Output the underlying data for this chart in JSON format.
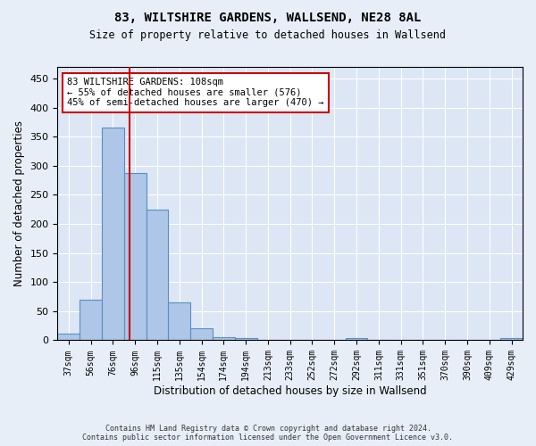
{
  "title": "83, WILTSHIRE GARDENS, WALLSEND, NE28 8AL",
  "subtitle": "Size of property relative to detached houses in Wallsend",
  "xlabel": "Distribution of detached houses by size in Wallsend",
  "ylabel": "Number of detached properties",
  "bar_labels": [
    "37sqm",
    "56sqm",
    "76sqm",
    "96sqm",
    "115sqm",
    "135sqm",
    "154sqm",
    "174sqm",
    "194sqm",
    "213sqm",
    "233sqm",
    "252sqm",
    "272sqm",
    "292sqm",
    "311sqm",
    "331sqm",
    "351sqm",
    "370sqm",
    "390sqm",
    "409sqm",
    "429sqm"
  ],
  "bar_values": [
    11,
    70,
    365,
    288,
    224,
    65,
    20,
    6,
    4,
    0,
    0,
    0,
    0,
    4,
    0,
    0,
    0,
    0,
    0,
    0,
    4
  ],
  "bar_color": "#aec6e8",
  "bar_edgecolor": "#5a8fc0",
  "bar_width": 1.0,
  "vline_x": 2.75,
  "vline_color": "#cc0000",
  "ylim": [
    0,
    470
  ],
  "yticks": [
    0,
    50,
    100,
    150,
    200,
    250,
    300,
    350,
    400,
    450
  ],
  "annotation_text": "83 WILTSHIRE GARDENS: 108sqm\n← 55% of detached houses are smaller (576)\n45% of semi-detached houses are larger (470) →",
  "annotation_box_color": "#ffffff",
  "annotation_box_edgecolor": "#cc0000",
  "footer_line1": "Contains HM Land Registry data © Crown copyright and database right 2024.",
  "footer_line2": "Contains public sector information licensed under the Open Government Licence v3.0.",
  "bg_color": "#e8eef7",
  "plot_bg_color": "#dce6f5"
}
